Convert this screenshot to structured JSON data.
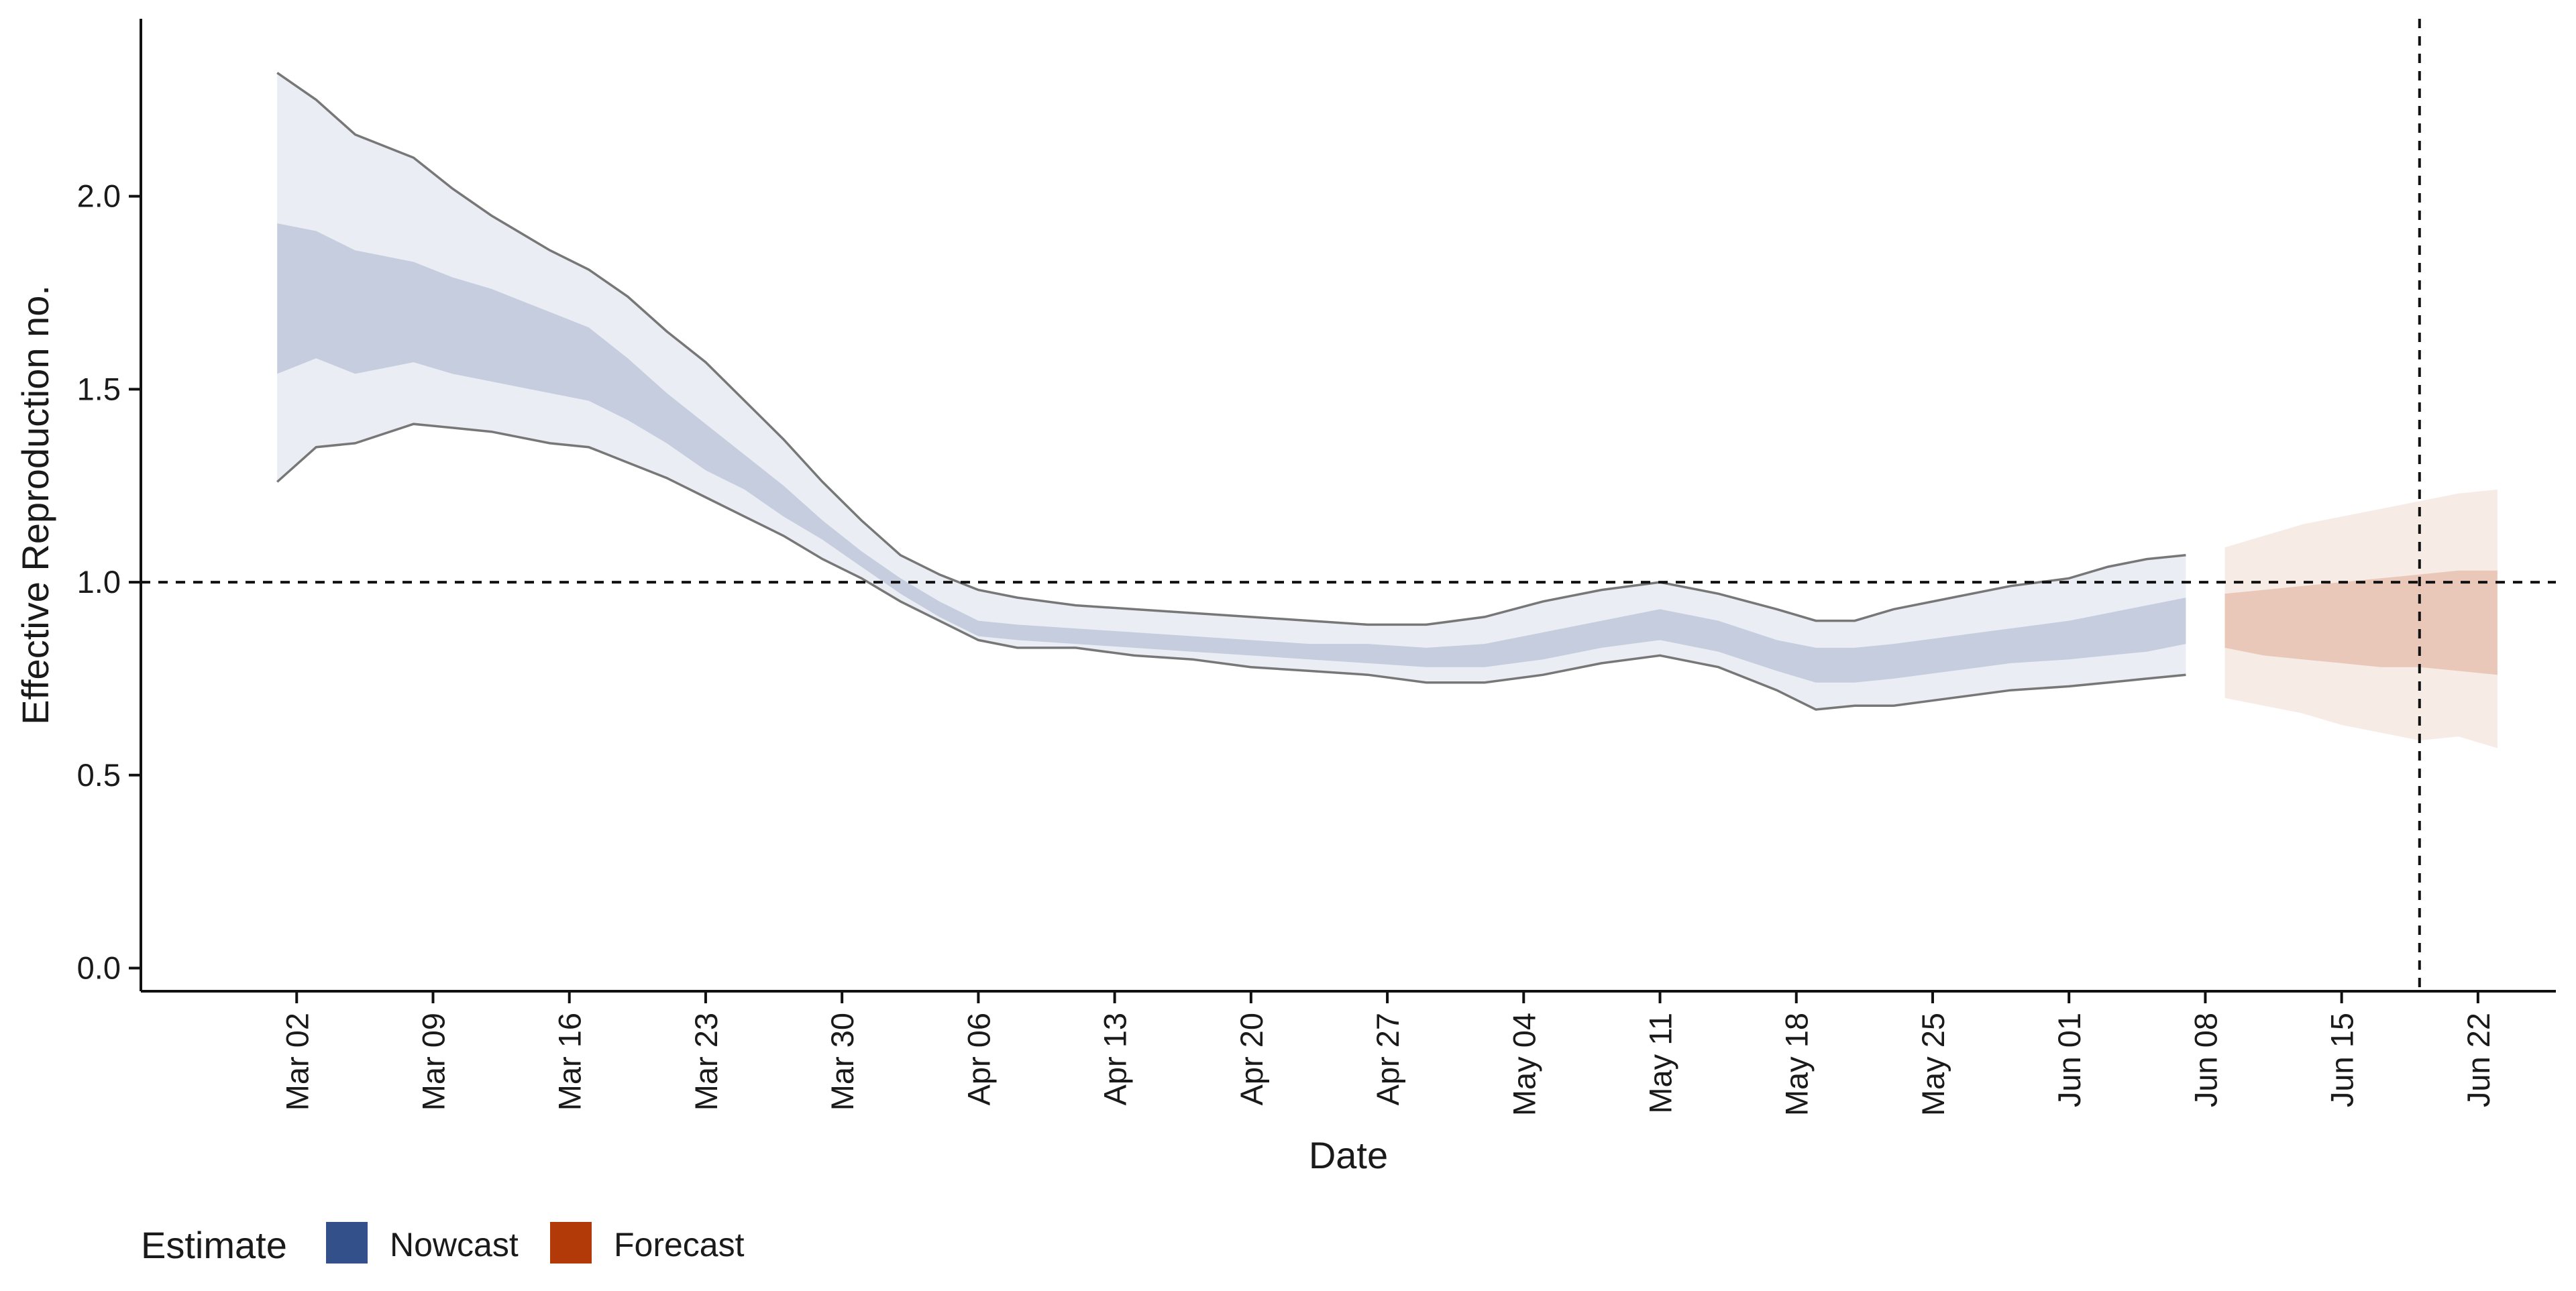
{
  "chart_data": {
    "type": "area",
    "xlabel": "Date",
    "ylabel": "Effective Reproduction no.",
    "xlim": [
      "2020-02-23",
      "2020-06-26"
    ],
    "ylim": [
      -0.06,
      2.46
    ],
    "y_ticks": [
      0.0,
      0.5,
      1.0,
      1.5,
      2.0
    ],
    "y_tick_labels": [
      "0.0",
      "0.5",
      "1.0",
      "1.5",
      "2.0"
    ],
    "x_ticks": [
      "2020-03-02",
      "2020-03-09",
      "2020-03-16",
      "2020-03-23",
      "2020-03-30",
      "2020-04-06",
      "2020-04-13",
      "2020-04-20",
      "2020-04-27",
      "2020-05-04",
      "2020-05-11",
      "2020-05-18",
      "2020-05-25",
      "2020-06-01",
      "2020-06-08",
      "2020-06-15",
      "2020-06-22"
    ],
    "x_tick_labels": [
      "Mar 02",
      "Mar 09",
      "Mar 16",
      "Mar 23",
      "Mar 30",
      "Apr 06",
      "Apr 13",
      "Apr 20",
      "Apr 27",
      "May 04",
      "May 11",
      "May 18",
      "May 25",
      "Jun 01",
      "Jun 08",
      "Jun 15",
      "Jun 22"
    ],
    "reference_lines": {
      "horizontal_y": 1.0,
      "vertical_x": "2020-06-19"
    },
    "grid": false,
    "legend": {
      "title": "Estimate",
      "position": "bottom-left",
      "entries": [
        "Nowcast",
        "Forecast"
      ]
    },
    "colors": {
      "Nowcast": "#33508a",
      "Forecast": "#b23a08",
      "outline": "#777777"
    },
    "series": [
      {
        "name": "Nowcast",
        "x": [
          "2020-03-01",
          "2020-03-03",
          "2020-03-05",
          "2020-03-08",
          "2020-03-10",
          "2020-03-12",
          "2020-03-15",
          "2020-03-17",
          "2020-03-19",
          "2020-03-21",
          "2020-03-23",
          "2020-03-25",
          "2020-03-27",
          "2020-03-29",
          "2020-03-31",
          "2020-04-02",
          "2020-04-04",
          "2020-04-06",
          "2020-04-08",
          "2020-04-11",
          "2020-04-14",
          "2020-04-17",
          "2020-04-20",
          "2020-04-23",
          "2020-04-26",
          "2020-04-29",
          "2020-05-02",
          "2020-05-05",
          "2020-05-08",
          "2020-05-11",
          "2020-05-14",
          "2020-05-17",
          "2020-05-19",
          "2020-05-21",
          "2020-05-23",
          "2020-05-26",
          "2020-05-29",
          "2020-06-01",
          "2020-06-03",
          "2020-06-05",
          "2020-06-07"
        ],
        "lower_90": [
          1.26,
          1.35,
          1.36,
          1.41,
          1.4,
          1.39,
          1.36,
          1.35,
          1.31,
          1.27,
          1.22,
          1.17,
          1.12,
          1.06,
          1.01,
          0.95,
          0.9,
          0.85,
          0.83,
          0.83,
          0.81,
          0.8,
          0.78,
          0.77,
          0.76,
          0.74,
          0.74,
          0.76,
          0.79,
          0.81,
          0.78,
          0.72,
          0.67,
          0.68,
          0.68,
          0.7,
          0.72,
          0.73,
          0.74,
          0.75,
          0.76
        ],
        "lower_50": [
          1.54,
          1.58,
          1.54,
          1.57,
          1.54,
          1.52,
          1.49,
          1.47,
          1.42,
          1.36,
          1.29,
          1.24,
          1.17,
          1.11,
          1.04,
          0.97,
          0.91,
          0.86,
          0.85,
          0.84,
          0.83,
          0.82,
          0.81,
          0.8,
          0.79,
          0.78,
          0.78,
          0.8,
          0.83,
          0.85,
          0.82,
          0.77,
          0.74,
          0.74,
          0.75,
          0.77,
          0.79,
          0.8,
          0.81,
          0.82,
          0.84
        ],
        "upper_50": [
          1.93,
          1.91,
          1.86,
          1.83,
          1.79,
          1.76,
          1.7,
          1.66,
          1.58,
          1.49,
          1.41,
          1.33,
          1.25,
          1.16,
          1.08,
          1.01,
          0.95,
          0.9,
          0.89,
          0.88,
          0.87,
          0.86,
          0.85,
          0.84,
          0.84,
          0.83,
          0.84,
          0.87,
          0.9,
          0.93,
          0.9,
          0.85,
          0.83,
          0.83,
          0.84,
          0.86,
          0.88,
          0.9,
          0.92,
          0.94,
          0.96
        ],
        "upper_90": [
          2.32,
          2.25,
          2.16,
          2.1,
          2.02,
          1.95,
          1.86,
          1.81,
          1.74,
          1.65,
          1.57,
          1.47,
          1.37,
          1.26,
          1.16,
          1.07,
          1.02,
          0.98,
          0.96,
          0.94,
          0.93,
          0.92,
          0.91,
          0.9,
          0.89,
          0.89,
          0.91,
          0.95,
          0.98,
          1.0,
          0.97,
          0.93,
          0.9,
          0.9,
          0.93,
          0.96,
          0.99,
          1.01,
          1.04,
          1.06,
          1.07
        ]
      },
      {
        "name": "Forecast",
        "x": [
          "2020-06-09",
          "2020-06-11",
          "2020-06-13",
          "2020-06-15",
          "2020-06-17",
          "2020-06-19",
          "2020-06-21",
          "2020-06-23"
        ],
        "lower_90": [
          0.7,
          0.68,
          0.66,
          0.63,
          0.61,
          0.59,
          0.6,
          0.57
        ],
        "lower_50": [
          0.83,
          0.81,
          0.8,
          0.79,
          0.78,
          0.78,
          0.77,
          0.76
        ],
        "upper_50": [
          0.97,
          0.98,
          0.99,
          1.0,
          1.01,
          1.02,
          1.03,
          1.03
        ],
        "upper_90": [
          1.09,
          1.12,
          1.15,
          1.17,
          1.19,
          1.21,
          1.23,
          1.24
        ]
      }
    ]
  }
}
